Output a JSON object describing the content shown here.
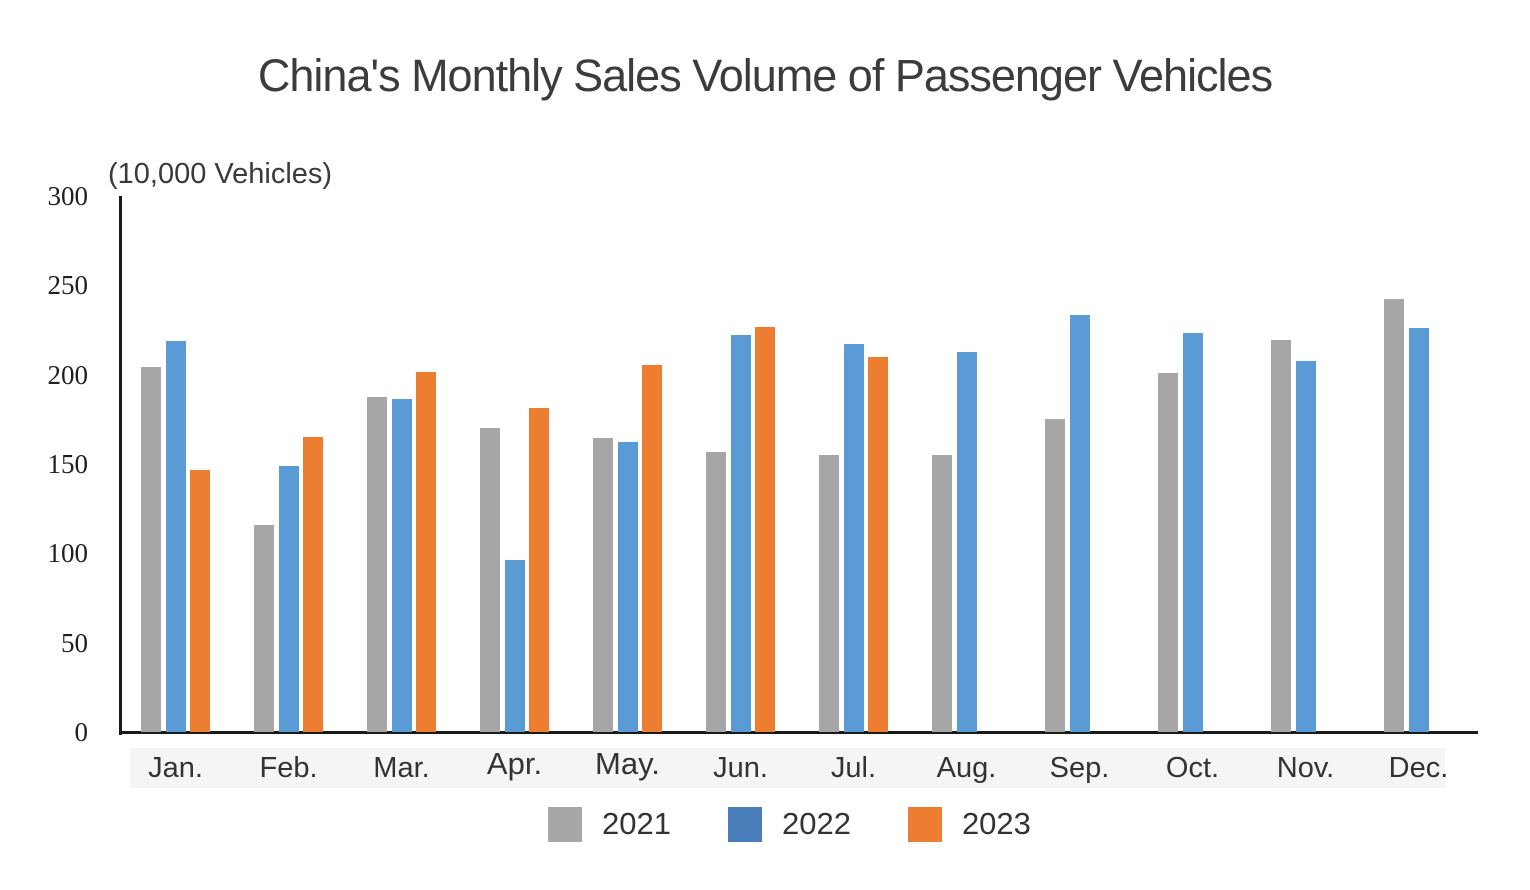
{
  "title": "China's Monthly Sales Volume of Passenger Vehicles",
  "unit_label": "(10,000 Vehicles)",
  "chart_data": {
    "type": "bar",
    "title": "China's Monthly Sales Volume of Passenger Vehicles",
    "ylabel": "(10,000 Vehicles)",
    "ylim": [
      0,
      300
    ],
    "yticks": [
      0,
      50,
      100,
      150,
      200,
      250,
      300
    ],
    "grid": false,
    "legend_position": "bottom",
    "categories": [
      "Jan.",
      "Feb.",
      "Mar.",
      "Apr.",
      "May.",
      "Jun.",
      "Jul.",
      "Aug.",
      "Sep.",
      "Oct.",
      "Nov.",
      "Dec."
    ],
    "series": [
      {
        "name": "2021",
        "color": "#A6A6A6",
        "legend_color": "#A7A7A7",
        "values": [
          204.5,
          115.6,
          187.4,
          170.4,
          164.6,
          156.9,
          155.1,
          155.2,
          175.1,
          200.7,
          219.2,
          242.2
        ]
      },
      {
        "name": "2022",
        "color": "#5B9BD5",
        "legend_color": "#4A7EBB",
        "values": [
          218.6,
          148.7,
          186.4,
          96.5,
          162.3,
          222.2,
          217.4,
          212.5,
          233.2,
          223.1,
          207.5,
          226.3
        ]
      },
      {
        "name": "2023",
        "color": "#ED7D31",
        "legend_color": "#ED7D31",
        "values": [
          146.9,
          165.3,
          201.7,
          181.1,
          205.2,
          226.8,
          210.0,
          null,
          null,
          null,
          null,
          null
        ]
      }
    ]
  }
}
